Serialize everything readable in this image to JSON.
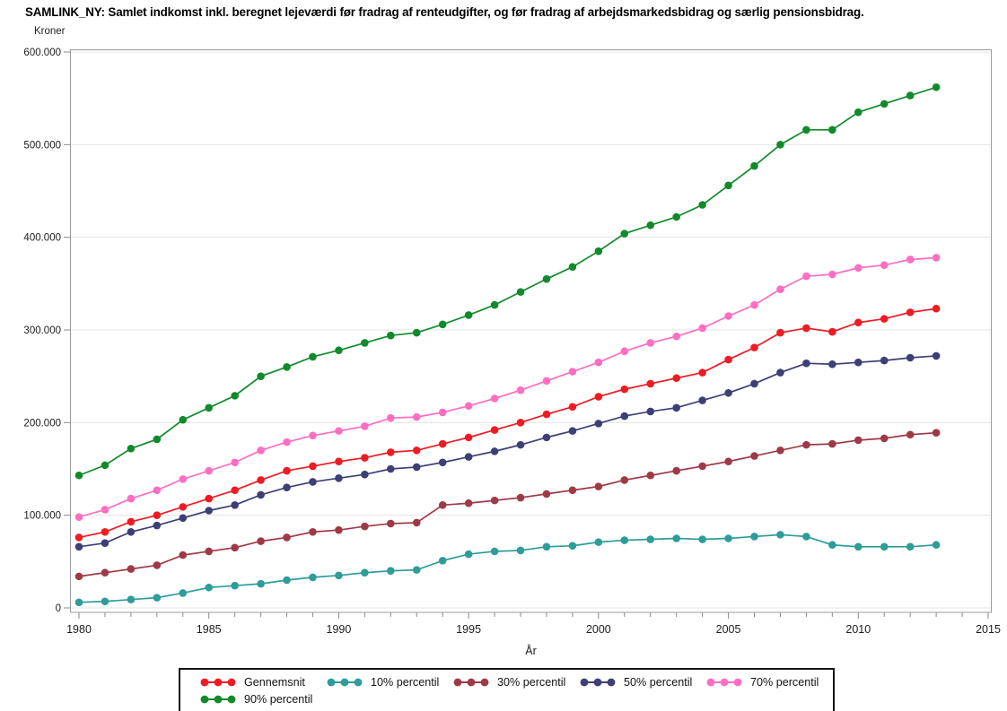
{
  "title": "SAMLINK_NY:  Samlet indkomst inkl. beregnet lejeværdi før fradrag af renteudgifter, og før fradrag af arbejdsmarkedsbidrag og særlig pensionsbidrag.",
  "y_axis": {
    "label": "Kroner",
    "tick_labels": [
      "0",
      "100.000",
      "200.000",
      "300.000",
      "400.000",
      "500.000",
      "600.000"
    ]
  },
  "x_axis": {
    "label": "År",
    "tick_labels": [
      "1980",
      "1985",
      "1990",
      "1995",
      "2000",
      "2005",
      "2010",
      "2015"
    ]
  },
  "legend": {
    "items": [
      "Gennemsnit",
      "10% percentil",
      "30% percentil",
      "50% percentil",
      "70% percentil",
      "90% percentil"
    ]
  },
  "chart_data": {
    "type": "line",
    "title": "SAMLINK_NY:  Samlet indkomst inkl. beregnet lejeværdi før fradrag af renteudgifter, og før fradrag af arbejdsmarkedsbidrag og særlig pensionsbidrag.",
    "xlabel": "År",
    "ylabel": "Kroner",
    "xlim": [
      1980,
      2015
    ],
    "ylim": [
      0,
      600000
    ],
    "grid": "horizontal",
    "legend_position": "bottom",
    "markers": true,
    "x": [
      1980,
      1981,
      1982,
      1983,
      1984,
      1985,
      1986,
      1987,
      1988,
      1989,
      1990,
      1991,
      1992,
      1993,
      1994,
      1995,
      1996,
      1997,
      1998,
      1999,
      2000,
      2001,
      2002,
      2003,
      2004,
      2005,
      2006,
      2007,
      2008,
      2009,
      2010,
      2011,
      2012,
      2013
    ],
    "series": [
      {
        "name": "Gennemsnit",
        "color": "#ED1C24",
        "values": [
          76000,
          82000,
          93000,
          100000,
          109000,
          118000,
          127000,
          138000,
          148000,
          153000,
          158000,
          162000,
          168000,
          170000,
          177000,
          184000,
          192000,
          200000,
          209000,
          217000,
          228000,
          236000,
          242000,
          248000,
          254000,
          268000,
          281000,
          297000,
          302000,
          298000,
          308000,
          312000,
          319000,
          323000
        ]
      },
      {
        "name": "10% percentil",
        "color": "#2E9C98",
        "values": [
          6000,
          7000,
          9000,
          11000,
          16000,
          22000,
          24000,
          26000,
          30000,
          33000,
          35000,
          38000,
          40000,
          41000,
          51000,
          58000,
          61000,
          62000,
          66000,
          67000,
          71000,
          73000,
          74000,
          75000,
          74000,
          75000,
          77000,
          79000,
          77000,
          68000,
          66000,
          66000,
          66000,
          68000
        ]
      },
      {
        "name": "30% percentil",
        "color": "#9E3A48",
        "values": [
          34000,
          38000,
          42000,
          46000,
          57000,
          61000,
          65000,
          72000,
          76000,
          82000,
          84000,
          88000,
          91000,
          92000,
          111000,
          113000,
          116000,
          119000,
          123000,
          127000,
          131000,
          138000,
          143000,
          148000,
          153000,
          158000,
          164000,
          170000,
          176000,
          177000,
          181000,
          183000,
          187000,
          189000
        ]
      },
      {
        "name": "50% percentil",
        "color": "#3E3F76",
        "values": [
          66000,
          70000,
          82000,
          89000,
          97000,
          105000,
          111000,
          122000,
          130000,
          136000,
          140000,
          144000,
          150000,
          152000,
          157000,
          163000,
          169000,
          176000,
          184000,
          191000,
          199000,
          207000,
          212000,
          216000,
          224000,
          232000,
          242000,
          254000,
          264000,
          263000,
          265000,
          267000,
          270000,
          272000
        ]
      },
      {
        "name": "70% percentil",
        "color": "#FF6EC1",
        "values": [
          98000,
          106000,
          118000,
          127000,
          139000,
          148000,
          157000,
          170000,
          179000,
          186000,
          191000,
          196000,
          205000,
          206000,
          211000,
          218000,
          226000,
          235000,
          245000,
          255000,
          265000,
          277000,
          286000,
          293000,
          302000,
          315000,
          327000,
          344000,
          358000,
          360000,
          367000,
          370000,
          376000,
          378000
        ]
      },
      {
        "name": "90% percentil",
        "color": "#118A2B",
        "values": [
          143000,
          154000,
          172000,
          182000,
          203000,
          216000,
          229000,
          250000,
          260000,
          271000,
          278000,
          286000,
          294000,
          297000,
          306000,
          316000,
          327000,
          341000,
          355000,
          368000,
          385000,
          404000,
          413000,
          422000,
          435000,
          456000,
          477000,
          500000,
          516000,
          516000,
          535000,
          544000,
          553000,
          562000
        ]
      }
    ]
  }
}
